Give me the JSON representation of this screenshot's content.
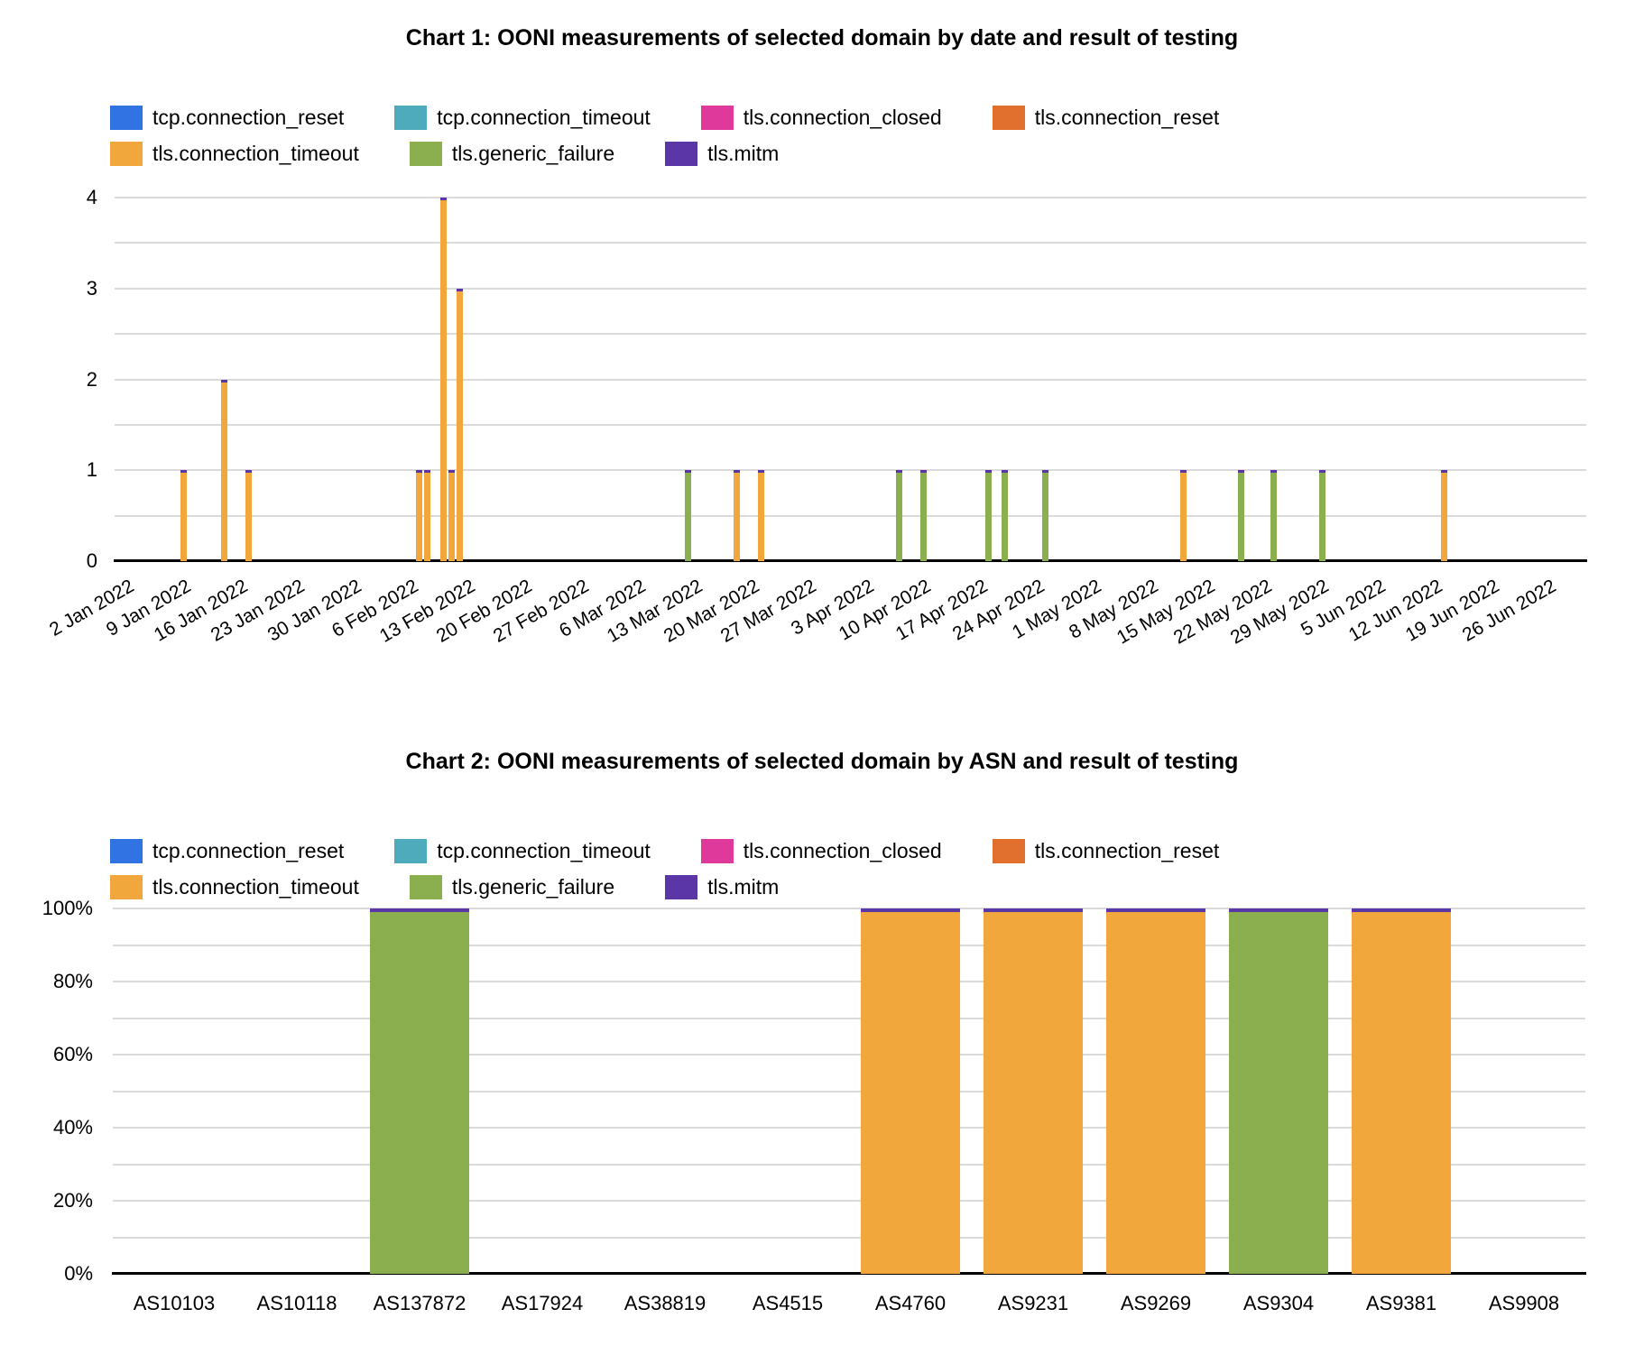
{
  "series": [
    {
      "name": "tcp.connection_reset",
      "color": "#3273E3"
    },
    {
      "name": "tcp.connection_timeout",
      "color": "#4EABBC"
    },
    {
      "name": "tls.connection_closed",
      "color": "#E0399C"
    },
    {
      "name": "tls.connection_reset",
      "color": "#E1702E"
    },
    {
      "name": "tls.connection_timeout",
      "color": "#F2A73D"
    },
    {
      "name": "tls.generic_failure",
      "color": "#8BAF4F"
    },
    {
      "name": "tls.mitm",
      "color": "#5B36A6"
    }
  ],
  "chart_data": [
    {
      "type": "bar",
      "stacked": true,
      "title": "Chart 1: OONI measurements of selected domain by date and result of testing",
      "xlabel": "",
      "ylabel": "",
      "ylim": [
        0,
        4
      ],
      "y_tick_labels": [
        "0",
        "1",
        "2",
        "3",
        "4"
      ],
      "gridlines": "every 0.5, light gray",
      "legend_position": "top",
      "x_domain": {
        "start": "1 Jan 2022",
        "end": "30 Jun 2022",
        "unit": "day"
      },
      "x_tick_labels": [
        "2 Jan 2022",
        "9 Jan 2022",
        "16 Jan 2022",
        "23 Jan 2022",
        "30 Jan 2022",
        "6 Feb 2022",
        "13 Feb 2022",
        "20 Feb 2022",
        "27 Feb 2022",
        "6 Mar 2022",
        "13 Mar 2022",
        "20 Mar 2022",
        "27 Mar 2022",
        "3 Apr 2022",
        "10 Apr 2022",
        "17 Apr 2022",
        "24 Apr 2022",
        "1 May 2022",
        "8 May 2022",
        "15 May 2022",
        "22 May 2022",
        "29 May 2022",
        "5 Jun 2022",
        "12 Jun 2022",
        "19 Jun 2022",
        "26 Jun 2022"
      ],
      "points": [
        {
          "x": "9 Jan 2022",
          "series": "tls.connection_timeout",
          "y": 1
        },
        {
          "x": "14 Jan 2022",
          "series": "tls.connection_timeout",
          "y": 2
        },
        {
          "x": "17 Jan 2022",
          "series": "tls.connection_timeout",
          "y": 1
        },
        {
          "x": "7 Feb 2022",
          "series": "tls.connection_timeout",
          "y": 1
        },
        {
          "x": "8 Feb 2022",
          "series": "tls.connection_timeout",
          "y": 1
        },
        {
          "x": "10 Feb 2022",
          "series": "tls.connection_timeout",
          "y": 4
        },
        {
          "x": "11 Feb 2022",
          "series": "tls.connection_timeout",
          "y": 1
        },
        {
          "x": "12 Feb 2022",
          "series": "tls.connection_timeout",
          "y": 3
        },
        {
          "x": "12 Mar 2022",
          "series": "tls.generic_failure",
          "y": 1
        },
        {
          "x": "18 Mar 2022",
          "series": "tls.connection_timeout",
          "y": 1
        },
        {
          "x": "21 Mar 2022",
          "series": "tls.connection_timeout",
          "y": 1
        },
        {
          "x": "7 Apr 2022",
          "series": "tls.generic_failure",
          "y": 1
        },
        {
          "x": "10 Apr 2022",
          "series": "tls.generic_failure",
          "y": 1
        },
        {
          "x": "18 Apr 2022",
          "series": "tls.generic_failure",
          "y": 1
        },
        {
          "x": "20 Apr 2022",
          "series": "tls.generic_failure",
          "y": 1
        },
        {
          "x": "25 Apr 2022",
          "series": "tls.generic_failure",
          "y": 1
        },
        {
          "x": "12 May 2022",
          "series": "tls.connection_timeout",
          "y": 1
        },
        {
          "x": "19 May 2022",
          "series": "tls.generic_failure",
          "y": 1
        },
        {
          "x": "23 May 2022",
          "series": "tls.generic_failure",
          "y": 1
        },
        {
          "x": "29 May 2022",
          "series": "tls.generic_failure",
          "y": 1
        },
        {
          "x": "13 Jun 2022",
          "series": "tls.connection_timeout",
          "y": 1
        }
      ]
    },
    {
      "type": "bar",
      "stacked": "percent",
      "title": "Chart 2: OONI measurements of selected domain by ASN and result of testing",
      "xlabel": "",
      "ylabel": "",
      "ylim_pct": [
        0,
        100
      ],
      "y_tick_labels": [
        "0%",
        "20%",
        "40%",
        "60%",
        "80%",
        "100%"
      ],
      "gridlines": "every 10%, light gray",
      "legend_position": "top",
      "categories": [
        "AS10103",
        "AS10118",
        "AS137872",
        "AS17924",
        "AS38819",
        "AS4515",
        "AS4760",
        "AS9231",
        "AS9269",
        "AS9304",
        "AS9381",
        "AS9908"
      ],
      "bars": [
        {
          "category": "AS137872",
          "series": "tls.generic_failure",
          "pct": 100
        },
        {
          "category": "AS4760",
          "series": "tls.connection_timeout",
          "pct": 100
        },
        {
          "category": "AS9231",
          "series": "tls.connection_timeout",
          "pct": 100
        },
        {
          "category": "AS9269",
          "series": "tls.connection_timeout",
          "pct": 100
        },
        {
          "category": "AS9304",
          "series": "tls.generic_failure",
          "pct": 100
        },
        {
          "category": "AS9381",
          "series": "tls.connection_timeout",
          "pct": 100
        }
      ]
    }
  ]
}
